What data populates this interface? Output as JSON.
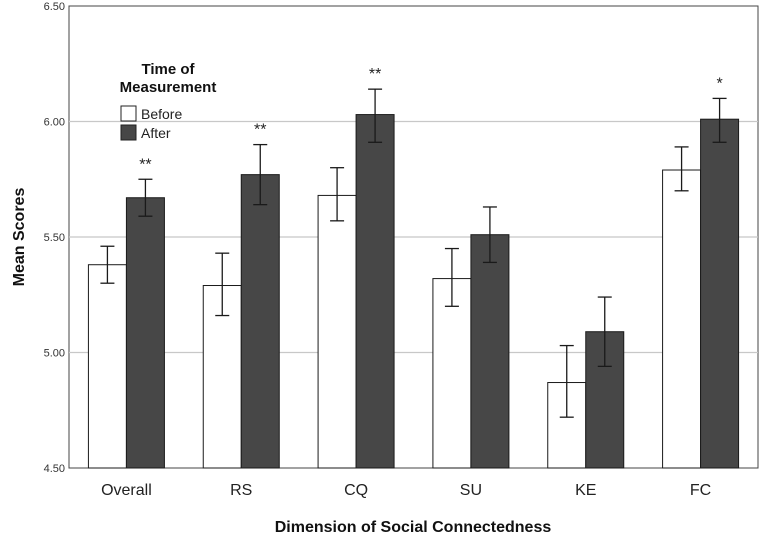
{
  "chart_data": {
    "type": "bar",
    "title": "",
    "xlabel": "Dimension of Social Connectedness",
    "ylabel": "Mean Scores",
    "ylim": [
      4.5,
      6.5
    ],
    "yticks": [
      "4.50",
      "5.00",
      "5.50",
      "6.00",
      "6.50"
    ],
    "ytick_values": [
      4.5,
      5.0,
      5.5,
      6.0,
      6.5
    ],
    "grid": true,
    "categories": [
      "Overall",
      "RS",
      "CQ",
      "SU",
      "KE",
      "FC"
    ],
    "legend": {
      "title_line1": "Time of",
      "title_line2": "Measurement",
      "position": "top-left"
    },
    "series": [
      {
        "name": "Before",
        "color": "#ffffff",
        "values": [
          5.38,
          5.29,
          5.68,
          5.32,
          4.87,
          5.79
        ],
        "error_low": [
          5.3,
          5.16,
          5.57,
          5.2,
          4.72,
          5.7
        ],
        "error_high": [
          5.46,
          5.43,
          5.8,
          5.45,
          5.03,
          5.89
        ]
      },
      {
        "name": "After",
        "color": "#474747",
        "values": [
          5.67,
          5.77,
          6.03,
          5.51,
          5.09,
          6.01
        ],
        "error_low": [
          5.59,
          5.64,
          5.91,
          5.39,
          4.94,
          5.91
        ],
        "error_high": [
          5.75,
          5.9,
          6.14,
          5.63,
          5.24,
          6.1
        ]
      }
    ],
    "significance": [
      "**",
      "**",
      "**",
      "",
      "",
      "*"
    ]
  }
}
